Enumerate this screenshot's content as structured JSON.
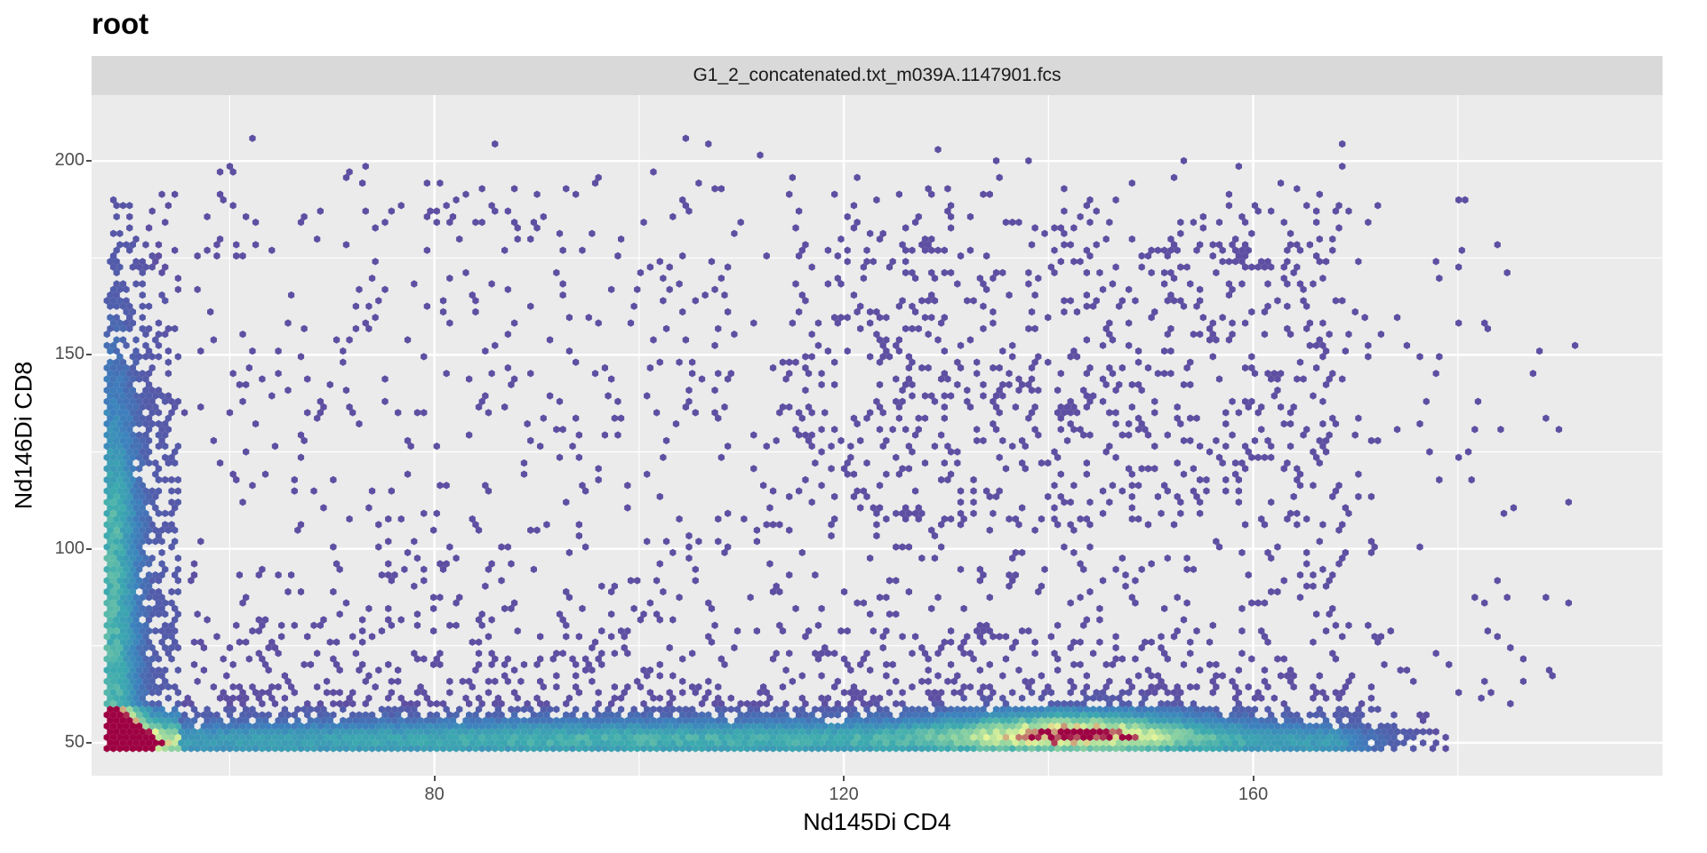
{
  "chart_data": {
    "type": "heatmap",
    "subtype": "hexbin",
    "title": "root",
    "facet_label": "G1_2_concatenated.txt_m039A.1147901.fcs",
    "xlabel": "Nd145Di CD4",
    "ylabel": "Nd146Di CD8",
    "xlim": [
      46.5,
      200
    ],
    "ylim": [
      41.5,
      217
    ],
    "x_ticks": [
      80,
      120,
      160
    ],
    "x_tick_labels": [
      "80",
      "120",
      "160"
    ],
    "y_ticks": [
      50,
      100,
      150,
      200
    ],
    "y_tick_labels": [
      "50",
      "100",
      "150",
      "200"
    ],
    "x_minor_ticks": [
      60,
      100,
      140,
      180
    ],
    "y_minor_ticks": [
      75,
      125,
      175
    ],
    "grid": true,
    "colorscale": [
      "#5e4fa2",
      "#3288bd",
      "#66c2a5",
      "#abdda4",
      "#e6f598",
      "#9e0142"
    ],
    "density_regions": [
      {
        "name": "CD4-negative vertical band",
        "x_range": [
          48,
          57
        ],
        "y_range": [
          48,
          200
        ],
        "relative_density": "high"
      },
      {
        "name": "CD8-low horizontal band",
        "x_range": [
          48,
          170
        ],
        "y_range": [
          48,
          85
        ],
        "relative_density": "high"
      },
      {
        "name": "CD4 positive cluster",
        "x_range": [
          120,
          168
        ],
        "y_range": [
          48,
          70
        ],
        "relative_density": "medium-high"
      },
      {
        "name": "scattered events",
        "x_range": [
          57,
          192
        ],
        "y_range": [
          85,
          206
        ],
        "relative_density": "low"
      },
      {
        "name": "peak",
        "x": 48,
        "y": 49,
        "relative_density": "max"
      }
    ]
  },
  "colors": {
    "panel_bg": "#ebebeb",
    "grid_major": "#ffffff",
    "strip_bg": "#d9d9d9",
    "low": "#5e4fa2",
    "high": "#9e0142"
  }
}
